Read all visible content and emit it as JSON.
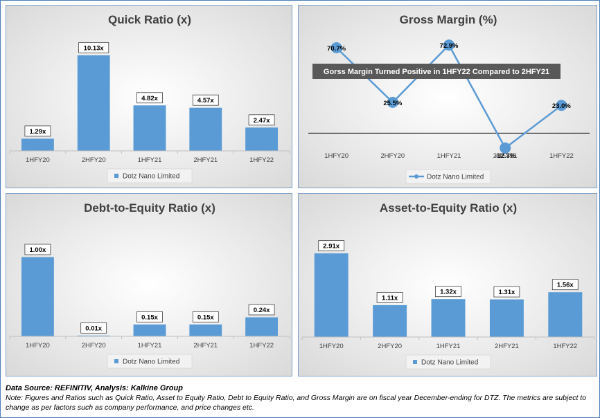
{
  "chart_data": [
    {
      "type": "bar",
      "title": "Quick Ratio (x)",
      "categories": [
        "1HFY20",
        "2HFY20",
        "1HFY21",
        "2HFY21",
        "1HFY22"
      ],
      "series": [
        {
          "name": "Dotz Nano Limited",
          "values": [
            1.29,
            10.13,
            4.82,
            4.57,
            2.47
          ]
        }
      ],
      "data_labels": [
        "1.29x",
        "10.13x",
        "4.82x",
        "4.57x",
        "2.47x"
      ],
      "ylim": [
        0,
        11
      ],
      "legend": "bottom",
      "bar_color": "#5b9bd5"
    },
    {
      "type": "line",
      "title": "Gross Margin (%)",
      "categories": [
        "1HFY20",
        "2HFY20",
        "1HFY21",
        "2HFY21",
        "1HFY22"
      ],
      "series": [
        {
          "name": "Dotz Nano Limited",
          "values": [
            70.7,
            25.5,
            72.9,
            -12.3,
            23.0
          ]
        }
      ],
      "data_labels": [
        "70.7%",
        "25.5%",
        "72.9%",
        "-12.3%",
        "23.0%"
      ],
      "ylim": [
        -25,
        85
      ],
      "annotation": "Gorss Margin Turned Positive in 1HFY22 Compared to 2HFY21",
      "legend": "bottom",
      "line_color": "#5b9bd5"
    },
    {
      "type": "bar",
      "title": "Debt-to-Equity Ratio (x)",
      "categories": [
        "1HFY20",
        "2HFY20",
        "1HFY21",
        "2HFY21",
        "1HFY22"
      ],
      "series": [
        {
          "name": "Dotz Nano Limited",
          "values": [
            1.0,
            0.01,
            0.15,
            0.15,
            0.24
          ]
        }
      ],
      "data_labels": [
        "1.00x",
        "0.01x",
        "0.15x",
        "0.15x",
        "0.24x"
      ],
      "ylim": [
        0,
        1.17
      ],
      "legend": "bottom",
      "bar_color": "#5b9bd5"
    },
    {
      "type": "bar",
      "title": "Asset-to-Equity Ratio (x)",
      "categories": [
        "1HFY20",
        "2HFY20",
        "1HFY21",
        "2HFY21",
        "1HFY22"
      ],
      "series": [
        {
          "name": "Dotz Nano Limited",
          "values": [
            2.91,
            1.11,
            1.32,
            1.31,
            1.56
          ]
        }
      ],
      "data_labels": [
        "2.91x",
        "1.11x",
        "1.32x",
        "1.31x",
        "1.56x"
      ],
      "ylim": [
        0,
        3.25
      ],
      "legend": "bottom",
      "bar_color": "#5b9bd5"
    }
  ],
  "footer": {
    "source": "Data Source: REFINITIV, Analysis: Kalkine Group",
    "note": "Note: Figures and Ratios such as Quick Ratio, Asset to Equity Ratio, Debt to Equity Ratio, and Gross Margin are on fiscal year December-ending for DTZ. The metrics are subject to change as per factors such as company performance, and price changes etc."
  }
}
